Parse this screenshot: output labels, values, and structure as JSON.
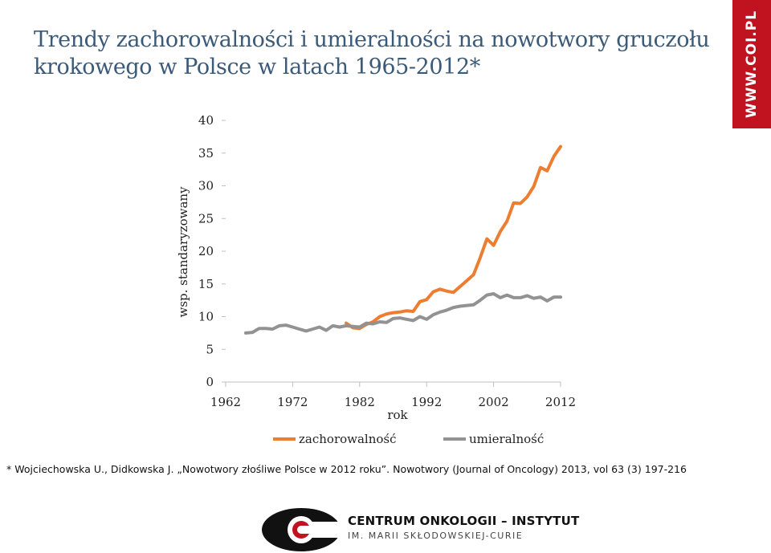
{
  "header": {
    "title_line1": "Trendy zachorowalności i umieralności na nowotwory gruczołu",
    "title_line2": "krokowego w Polsce w latach 1965-2012*",
    "site_badge": "WWW.COI.PL"
  },
  "chart_data": {
    "type": "line",
    "xlabel": "rok",
    "ylabel": "wsp. standaryzowany",
    "xlim": [
      1962,
      2012
    ],
    "ylim": [
      0,
      40
    ],
    "x_ticks": [
      1962,
      1972,
      1982,
      1992,
      2002,
      2012
    ],
    "y_ticks": [
      0,
      5,
      10,
      15,
      20,
      25,
      30,
      35,
      40
    ],
    "grid": false,
    "legend_position": "bottom",
    "series": [
      {
        "name": "zachorowalność",
        "color": "#ed7d31",
        "x": [
          1980,
          1981,
          1982,
          1983,
          1984,
          1985,
          1986,
          1987,
          1988,
          1989,
          1990,
          1991,
          1992,
          1993,
          1994,
          1995,
          1996,
          1997,
          1998,
          1999,
          2000,
          2001,
          2002,
          2003,
          2004,
          2005,
          2006,
          2007,
          2008,
          2009,
          2010,
          2011,
          2012
        ],
        "y": [
          9.0,
          8.3,
          8.2,
          8.8,
          9.2,
          10.0,
          10.4,
          10.6,
          10.7,
          10.9,
          10.8,
          12.3,
          12.6,
          13.8,
          14.2,
          13.9,
          13.7,
          14.6,
          15.5,
          16.4,
          19.0,
          21.9,
          20.9,
          23.0,
          24.6,
          27.4,
          27.3,
          28.3,
          29.9,
          32.8,
          32.3,
          34.5,
          36.0
        ]
      },
      {
        "name": "umieralność",
        "color": "#929292",
        "x": [
          1965,
          1966,
          1967,
          1968,
          1969,
          1970,
          1971,
          1972,
          1973,
          1974,
          1975,
          1976,
          1977,
          1978,
          1979,
          1980,
          1981,
          1982,
          1983,
          1984,
          1985,
          1986,
          1987,
          1988,
          1989,
          1990,
          1991,
          1992,
          1993,
          1994,
          1995,
          1996,
          1997,
          1998,
          1999,
          2000,
          2001,
          2002,
          2003,
          2004,
          2005,
          2006,
          2007,
          2008,
          2009,
          2010,
          2011,
          2012
        ],
        "y": [
          7.5,
          7.6,
          8.2,
          8.2,
          8.1,
          8.6,
          8.7,
          8.4,
          8.1,
          7.8,
          8.1,
          8.4,
          7.9,
          8.6,
          8.4,
          8.6,
          8.5,
          8.4,
          9.0,
          8.9,
          9.2,
          9.1,
          9.7,
          9.8,
          9.6,
          9.4,
          10.0,
          9.6,
          10.3,
          10.7,
          11.0,
          11.4,
          11.6,
          11.7,
          11.8,
          12.5,
          13.3,
          13.5,
          12.9,
          13.3,
          12.9,
          12.9,
          13.2,
          12.8,
          13.0,
          12.4,
          13.0,
          13.0
        ]
      }
    ]
  },
  "footnote": "* Wojciechowska U., Didkowska J. „Nowotwory złośliwe  Polsce w 2012 roku”. Nowotwory (Journal of Oncology) 2013, vol 63 (3) 197-216",
  "logo": {
    "name": "CENTRUM ONKOLOGII – INSTYTUT",
    "subtitle": "IM. MARII SKŁODOWSKIEJ-CURIE"
  }
}
